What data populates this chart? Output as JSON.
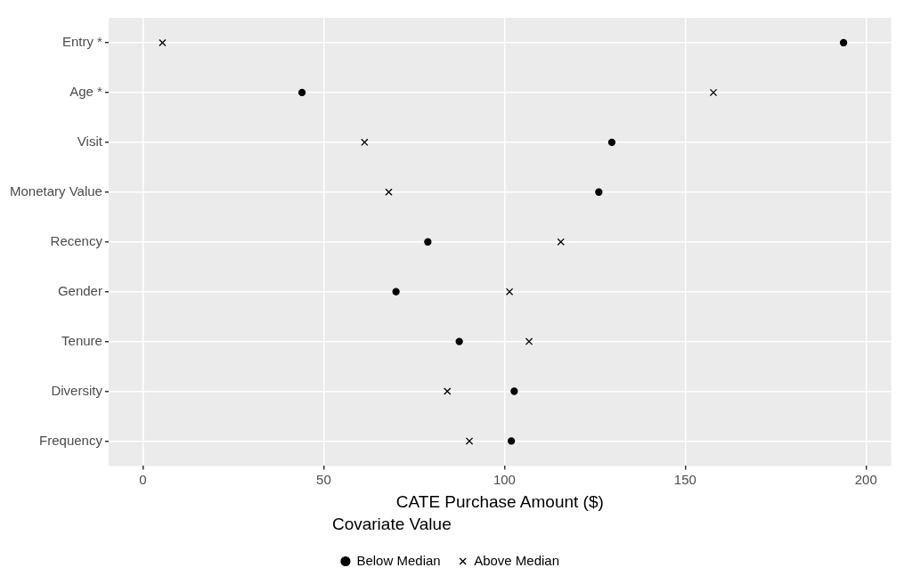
{
  "chart_data": {
    "type": "scatter",
    "orientation": "horizontal",
    "xlabel": "CATE Purchase Amount ($)",
    "legend_title": "Covariate Value",
    "legend": "bottom",
    "grid": true,
    "categories": [
      "Entry *",
      "Age *",
      "Visit",
      "Monetary Value",
      "Recency",
      "Gender",
      "Tenure",
      "Diversity",
      "Frequency"
    ],
    "xlim": [
      -9.5,
      207
    ],
    "xticks": [
      0,
      50,
      100,
      150,
      200
    ],
    "series": [
      {
        "name": "Below Median",
        "color": "#000000",
        "marker": "circle",
        "values": [
          193.8,
          44,
          129.7,
          126.1,
          78.8,
          70,
          87.5,
          102.7,
          101.9
        ]
      },
      {
        "name": "Above Median",
        "color": "#000000",
        "marker": "cross",
        "values": [
          5.4,
          157.8,
          61.3,
          68,
          115.6,
          101.4,
          106.8,
          84.2,
          90.3
        ]
      }
    ]
  }
}
